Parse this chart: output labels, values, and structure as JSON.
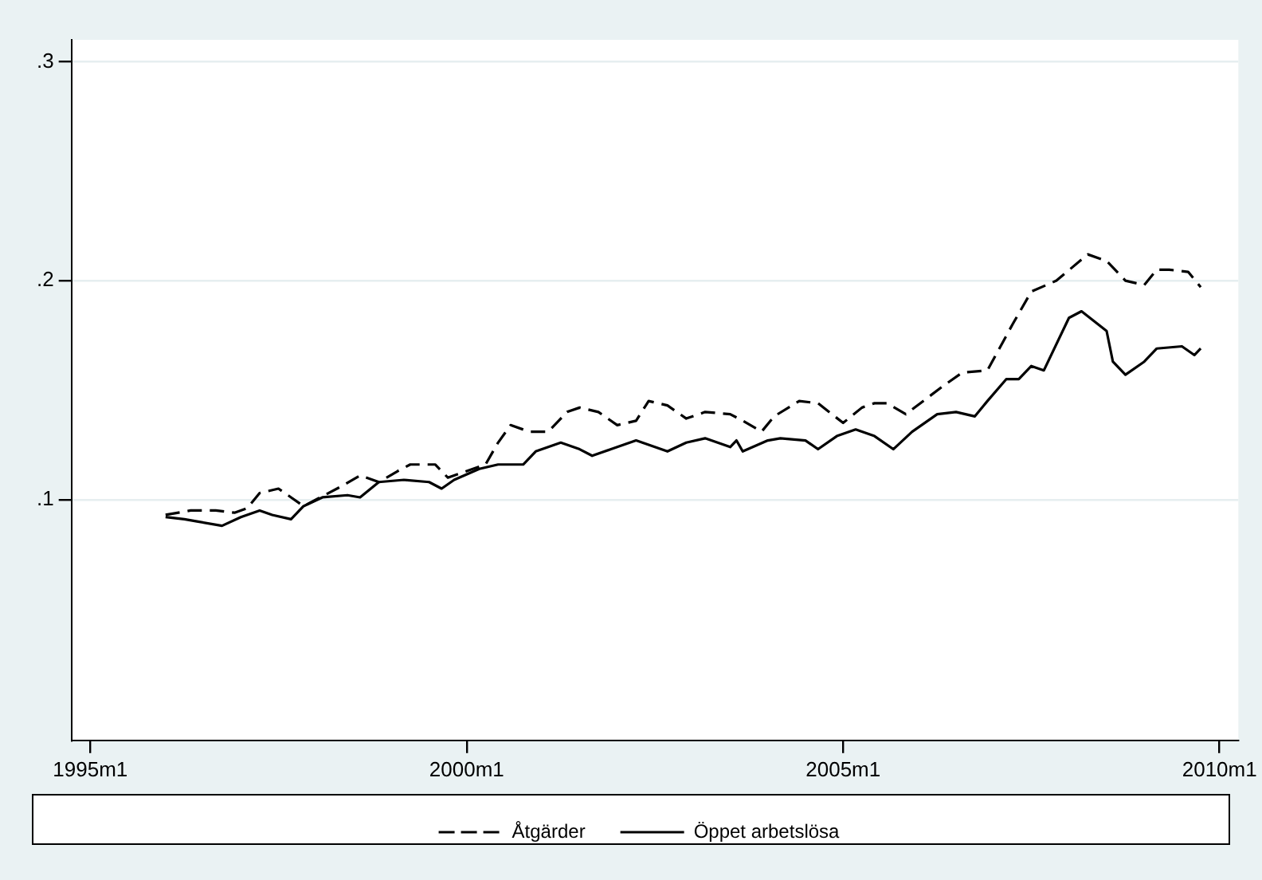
{
  "chart_data": {
    "type": "line",
    "xlim": [
      "1994-10",
      "2010-04"
    ],
    "xticks": [
      {
        "value": "1995-01",
        "label": "1995m1"
      },
      {
        "value": "2000-01",
        "label": "2000m1"
      },
      {
        "value": "2005-01",
        "label": "2005m1"
      },
      {
        "value": "2010-01",
        "label": "2010m1"
      }
    ],
    "ylim": [
      -0.01,
      0.31
    ],
    "yticks": [
      {
        "value": 0.1,
        "label": ".1"
      },
      {
        "value": 0.2,
        "label": ".2"
      },
      {
        "value": 0.3,
        "label": ".3"
      }
    ],
    "grid": "y",
    "legend": "bottom",
    "marker": "none",
    "series": [
      {
        "name": "Åtgärder",
        "color": "#000000",
        "line_style": "dashed",
        "x": [
          "1996-01",
          "1996-05",
          "1996-09",
          "1996-12",
          "1997-02",
          "1997-04",
          "1997-07",
          "1997-09",
          "1997-11",
          "1998-01",
          "1998-05",
          "1998-08",
          "1998-11",
          "1999-02",
          "1999-04",
          "1999-08",
          "1999-10",
          "1999-12",
          "2000-04",
          "2000-06",
          "2000-08",
          "2000-11",
          "2001-02",
          "2001-05",
          "2001-07",
          "2001-10",
          "2002-01",
          "2002-04",
          "2002-06",
          "2002-09",
          "2002-12",
          "2003-03",
          "2003-07",
          "2003-09",
          "2003-12",
          "2004-02",
          "2004-06",
          "2004-09",
          "2005-01",
          "2005-04",
          "2005-06",
          "2005-08",
          "2005-11",
          "2006-05",
          "2006-08",
          "2006-12",
          "2007-04",
          "2007-07",
          "2007-11",
          "2008-04",
          "2008-07",
          "2008-10",
          "2009-01",
          "2009-03",
          "2009-05",
          "2009-08",
          "2009-10"
        ],
        "values": [
          0.093,
          0.095,
          0.095,
          0.094,
          0.096,
          0.103,
          0.105,
          0.101,
          0.097,
          0.1,
          0.106,
          0.111,
          0.108,
          0.113,
          0.116,
          0.116,
          0.11,
          0.112,
          0.116,
          0.126,
          0.134,
          0.131,
          0.131,
          0.14,
          0.142,
          0.14,
          0.134,
          0.136,
          0.145,
          0.143,
          0.137,
          0.14,
          0.139,
          0.136,
          0.131,
          0.138,
          0.145,
          0.144,
          0.135,
          0.142,
          0.144,
          0.144,
          0.139,
          0.152,
          0.158,
          0.159,
          0.18,
          0.195,
          0.2,
          0.212,
          0.209,
          0.2,
          0.198,
          0.205,
          0.205,
          0.204,
          0.197
        ]
      },
      {
        "name": "Öppet arbetslösa",
        "color": "#000000",
        "line_style": "solid",
        "x": [
          "1996-01",
          "1996-04",
          "1996-06",
          "1996-10",
          "1997-01",
          "1997-04",
          "1997-06",
          "1997-09",
          "1997-11",
          "1998-02",
          "1998-06",
          "1998-08",
          "1998-11",
          "1999-03",
          "1999-07",
          "1999-09",
          "1999-11",
          "2000-03",
          "2000-06",
          "2000-10",
          "2000-12",
          "2001-04",
          "2001-07",
          "2001-09",
          "2001-12",
          "2002-04",
          "2002-07",
          "2002-09",
          "2002-12",
          "2003-03",
          "2003-07",
          "2003-08",
          "2003-09",
          "2004-01",
          "2004-03",
          "2004-07",
          "2004-09",
          "2004-12",
          "2005-03",
          "2005-06",
          "2005-09",
          "2005-12",
          "2006-04",
          "2006-07",
          "2006-10",
          "2006-12",
          "2007-03",
          "2007-05",
          "2007-07",
          "2007-09",
          "2008-01",
          "2008-03",
          "2008-07",
          "2008-08",
          "2008-10",
          "2009-01",
          "2009-03",
          "2009-07",
          "2009-09",
          "2009-10"
        ],
        "values": [
          0.092,
          0.091,
          0.09,
          0.088,
          0.092,
          0.095,
          0.093,
          0.091,
          0.097,
          0.101,
          0.102,
          0.101,
          0.108,
          0.109,
          0.108,
          0.105,
          0.109,
          0.114,
          0.116,
          0.116,
          0.122,
          0.126,
          0.123,
          0.12,
          0.123,
          0.127,
          0.124,
          0.122,
          0.126,
          0.128,
          0.124,
          0.127,
          0.122,
          0.127,
          0.128,
          0.127,
          0.123,
          0.129,
          0.132,
          0.129,
          0.123,
          0.131,
          0.139,
          0.14,
          0.138,
          0.145,
          0.155,
          0.155,
          0.161,
          0.159,
          0.183,
          0.186,
          0.177,
          0.163,
          0.157,
          0.163,
          0.169,
          0.17,
          0.166,
          0.169
        ]
      }
    ]
  }
}
